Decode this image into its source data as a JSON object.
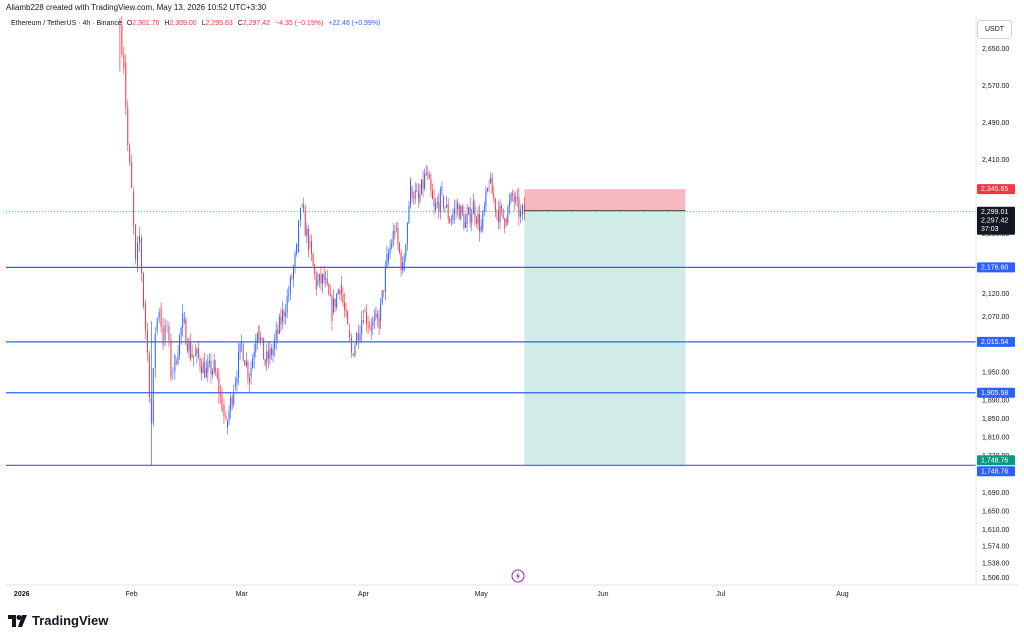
{
  "header": {
    "credit": "Aliamb228 created with TradingView.com, May 13, 2026 10:52 UTC+3:30"
  },
  "legend": {
    "symbol": "Ethereum / TetherUS · 4h · Binance",
    "o_label": "O",
    "o_value": "2,301.76",
    "h_label": "H",
    "h_value": "2,309.00",
    "l_label": "L",
    "l_value": "2,295.63",
    "c_label": "C",
    "c_value": "2,297.42",
    "change": "−4.35 (−0.19%)",
    "extra": "+22.46 (+0.99%)"
  },
  "currency": "USDT",
  "footer": {
    "brand": "TradingView"
  },
  "colors": {
    "up": "#2962ff",
    "down": "#f23645",
    "support_line": "#2962ff",
    "target_zone": "#d1ebe8",
    "stop_zone": "#f7b9c0",
    "price_tag_dark": "#131722",
    "price_tag_green": "#089981",
    "price_tag_red": "#f23645"
  },
  "chart_data": {
    "type": "candlestick",
    "y_ticks": [
      "2,650.00",
      "2,570.00",
      "2,490.00",
      "2,410.00",
      "2,250.00",
      "2,120.00",
      "2,070.00",
      "1,950.00",
      "1,890.00",
      "1,850.00",
      "1,810.00",
      "1,770.00",
      "1,690.00",
      "1,650.00",
      "1,610.00",
      "1,574.00",
      "1,538.00",
      "1,506.00"
    ],
    "x_ticks": [
      "2026",
      "Feb",
      "Mar",
      "Apr",
      "May",
      "Jun",
      "Jul",
      "Aug"
    ],
    "horizontal_levels": [
      {
        "price": 2176.6,
        "label": "2,176.60"
      },
      {
        "price": 2015.54,
        "label": "2,015.54"
      },
      {
        "price": 1905.58,
        "label": "1,905.58"
      },
      {
        "price": 1748.76,
        "label": "1,748.76"
      }
    ],
    "position": {
      "type": "short",
      "entry": 2299.01,
      "entry_label": "2,299.01",
      "stop": 2345.65,
      "stop_label": "2,345.65",
      "target": 1748.76,
      "target_label": "1,748.76",
      "start_date": "2026-05-12",
      "end_date": "2026-06-22"
    },
    "current_price": {
      "value": 2297.42,
      "label": "2,297.42",
      "countdown": "37:03"
    },
    "price_path": [
      [
        "2026-01-29",
        2700
      ],
      [
        "2026-01-30",
        2620
      ],
      [
        "2026-01-31",
        2440
      ],
      [
        "2026-02-01",
        2340
      ],
      [
        "2026-02-02",
        2180
      ],
      [
        "2026-02-03",
        2240
      ],
      [
        "2026-02-04",
        2100
      ],
      [
        "2026-02-05",
        1990
      ],
      [
        "2026-02-06",
        1840
      ],
      [
        "2026-02-07",
        2040
      ],
      [
        "2026-02-08",
        2090
      ],
      [
        "2026-02-09",
        2020
      ],
      [
        "2026-02-10",
        2050
      ],
      [
        "2026-02-11",
        1950
      ],
      [
        "2026-02-12",
        1970
      ],
      [
        "2026-02-14",
        2060
      ],
      [
        "2026-02-16",
        1990
      ],
      [
        "2026-02-18",
        1980
      ],
      [
        "2026-02-20",
        1950
      ],
      [
        "2026-02-22",
        1960
      ],
      [
        "2026-02-24",
        1880
      ],
      [
        "2026-02-25",
        1830
      ],
      [
        "2026-02-27",
        1920
      ],
      [
        "2026-03-01",
        2010
      ],
      [
        "2026-03-03",
        1940
      ],
      [
        "2026-03-05",
        2050
      ],
      [
        "2026-03-07",
        1970
      ],
      [
        "2026-03-09",
        2000
      ],
      [
        "2026-03-11",
        2060
      ],
      [
        "2026-03-13",
        2120
      ],
      [
        "2026-03-15",
        2210
      ],
      [
        "2026-03-16",
        2310
      ],
      [
        "2026-03-18",
        2230
      ],
      [
        "2026-03-20",
        2140
      ],
      [
        "2026-03-22",
        2150
      ],
      [
        "2026-03-24",
        2080
      ],
      [
        "2026-03-26",
        2140
      ],
      [
        "2026-03-28",
        2040
      ],
      [
        "2026-03-29",
        1990
      ],
      [
        "2026-04-01",
        2080
      ],
      [
        "2026-04-03",
        2050
      ],
      [
        "2026-04-05",
        2060
      ],
      [
        "2026-04-07",
        2190
      ],
      [
        "2026-04-09",
        2260
      ],
      [
        "2026-04-11",
        2170
      ],
      [
        "2026-04-13",
        2350
      ],
      [
        "2026-04-15",
        2320
      ],
      [
        "2026-04-17",
        2380
      ],
      [
        "2026-04-19",
        2300
      ],
      [
        "2026-04-21",
        2330
      ],
      [
        "2026-04-23",
        2280
      ],
      [
        "2026-04-25",
        2310
      ],
      [
        "2026-04-27",
        2270
      ],
      [
        "2026-04-29",
        2310
      ],
      [
        "2026-05-01",
        2260
      ],
      [
        "2026-05-03",
        2360
      ],
      [
        "2026-05-05",
        2300
      ],
      [
        "2026-05-07",
        2280
      ],
      [
        "2026-05-09",
        2330
      ],
      [
        "2026-05-11",
        2290
      ],
      [
        "2026-05-12",
        2297
      ]
    ],
    "price_range": [
      1490,
      2720
    ],
    "date_range": [
      "2025-12-31",
      "2026-09-04"
    ]
  }
}
